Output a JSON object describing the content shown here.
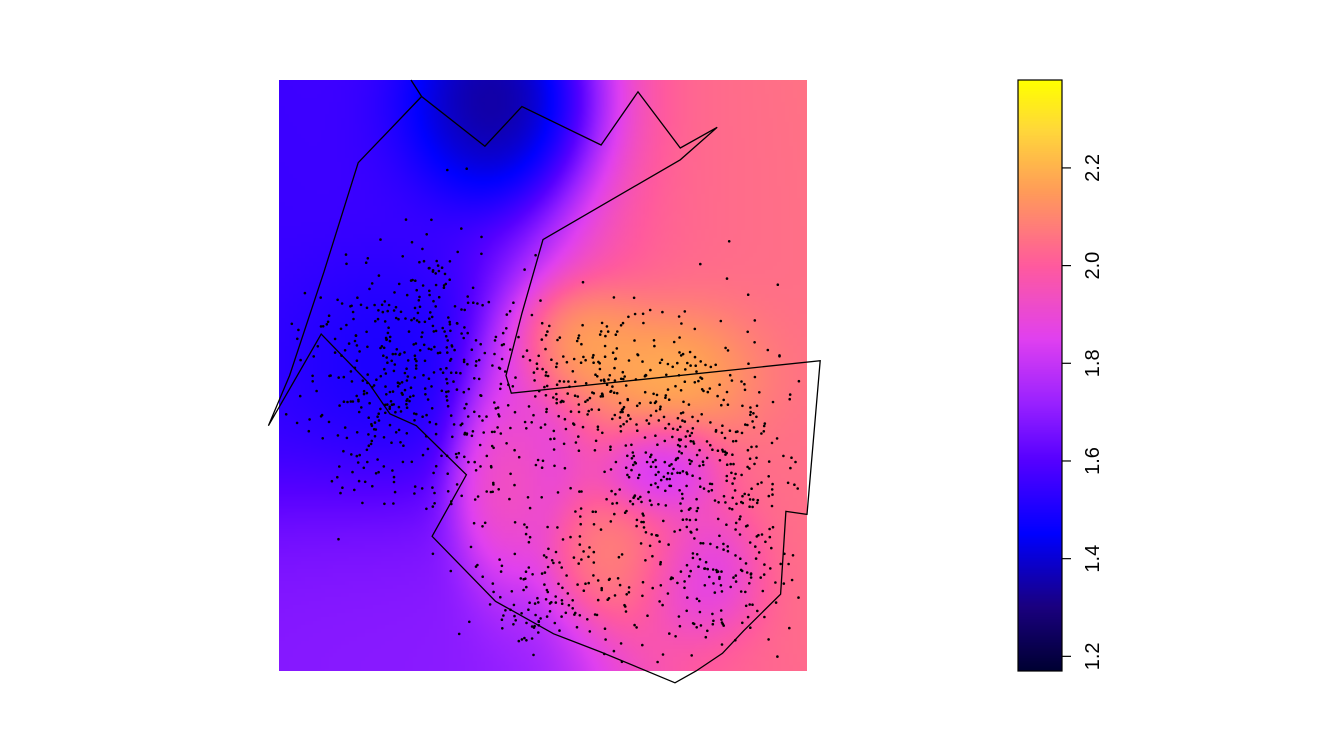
{
  "chart_data": {
    "type": "heatmap",
    "title": "",
    "xlabel": "",
    "ylabel": "",
    "axes_drawn": false,
    "colormap": {
      "name": "plasma-like",
      "stops": [
        {
          "value": 1.17,
          "color": "#000033"
        },
        {
          "value": 1.3,
          "color": "#1a0080"
        },
        {
          "value": 1.45,
          "color": "#0000ff"
        },
        {
          "value": 1.6,
          "color": "#5500ff"
        },
        {
          "value": 1.72,
          "color": "#9a22ff"
        },
        {
          "value": 1.85,
          "color": "#e040f0"
        },
        {
          "value": 2.0,
          "color": "#ff5a9e"
        },
        {
          "value": 2.15,
          "color": "#ff9a5a"
        },
        {
          "value": 2.28,
          "color": "#ffd83a"
        },
        {
          "value": 2.38,
          "color": "#ffff00"
        }
      ]
    },
    "colorbar": {
      "range": [
        1.17,
        2.38
      ],
      "ticks": [
        1.2,
        1.4,
        1.6,
        1.8,
        2.0,
        2.2
      ],
      "tick_labels": [
        "1.2",
        "1.4",
        "1.6",
        "1.8",
        "2.0",
        "2.2"
      ],
      "orientation": "vertical",
      "label_rotation": "rotated"
    },
    "surface_features": [
      {
        "kind": "high",
        "value": 2.35,
        "cx": 0.76,
        "cy": 0.5,
        "sx": 0.09,
        "sy": 0.07
      },
      {
        "kind": "high",
        "value": 2.3,
        "cx": 0.57,
        "cy": 0.44,
        "sx": 0.08,
        "sy": 0.06
      },
      {
        "kind": "high",
        "value": 2.05,
        "cx": 0.9,
        "cy": 0.65,
        "sx": 0.17,
        "sy": 0.22
      },
      {
        "kind": "high",
        "value": 2.05,
        "cx": 0.8,
        "cy": 0.22,
        "sx": 0.2,
        "sy": 0.25
      },
      {
        "kind": "high",
        "value": 2.15,
        "cx": 0.68,
        "cy": 0.8,
        "sx": 0.08,
        "sy": 0.06
      },
      {
        "kind": "high",
        "value": 2.05,
        "cx": 0.97,
        "cy": 0.8,
        "sx": 0.05,
        "sy": 0.06
      },
      {
        "kind": "high",
        "value": 2.0,
        "cx": 0.42,
        "cy": 0.62,
        "sx": 0.05,
        "sy": 0.12
      },
      {
        "kind": "low",
        "value": 1.15,
        "cx": 0.43,
        "cy": 0.06,
        "sx": 0.11,
        "sy": 0.1
      },
      {
        "kind": "low",
        "value": 1.45,
        "cx": 0.22,
        "cy": 0.45,
        "sx": 0.12,
        "sy": 0.1
      },
      {
        "kind": "low",
        "value": 1.55,
        "cx": 0.12,
        "cy": 0.25,
        "sx": 0.25,
        "sy": 0.25
      },
      {
        "kind": "low",
        "value": 1.62,
        "cx": 0.74,
        "cy": 0.66,
        "sx": 0.06,
        "sy": 0.05
      },
      {
        "kind": "low",
        "value": 1.7,
        "cx": 0.8,
        "cy": 0.82,
        "sx": 0.07,
        "sy": 0.06
      },
      {
        "kind": "low",
        "value": 1.7,
        "cx": 0.02,
        "cy": 0.98,
        "sx": 0.25,
        "sy": 0.15
      }
    ],
    "background_value": 1.8,
    "boundary_polygon": [
      [
        0.25,
        0.0
      ],
      [
        0.27,
        0.028
      ],
      [
        0.39,
        0.112
      ],
      [
        0.46,
        0.045
      ],
      [
        0.61,
        0.11
      ],
      [
        0.68,
        0.02
      ],
      [
        0.76,
        0.115
      ],
      [
        0.83,
        0.08
      ],
      [
        0.76,
        0.135
      ],
      [
        0.5,
        0.27
      ],
      [
        0.46,
        0.395
      ],
      [
        0.43,
        0.5
      ],
      [
        0.44,
        0.53
      ],
      [
        1.025,
        0.475
      ],
      [
        1.0,
        0.735
      ],
      [
        0.96,
        0.73
      ],
      [
        0.95,
        0.87
      ],
      [
        0.88,
        0.932
      ],
      [
        0.84,
        0.97
      ],
      [
        0.79,
        1.0
      ],
      [
        0.75,
        1.02
      ],
      [
        0.61,
        0.968
      ],
      [
        0.52,
        0.937
      ],
      [
        0.41,
        0.882
      ],
      [
        0.29,
        0.772
      ],
      [
        0.355,
        0.668
      ],
      [
        0.26,
        0.585
      ],
      [
        0.21,
        0.565
      ],
      [
        0.17,
        0.513
      ],
      [
        0.08,
        0.43
      ],
      [
        -0.02,
        0.585
      ],
      [
        0.02,
        0.5
      ],
      [
        0.085,
        0.325
      ],
      [
        0.15,
        0.14
      ],
      [
        0.27,
        0.028
      ]
    ],
    "point_clusters": [
      {
        "cx": 0.22,
        "cy": 0.48,
        "sx": 0.09,
        "sy": 0.08,
        "n": 250
      },
      {
        "cx": 0.63,
        "cy": 0.5,
        "sx": 0.14,
        "sy": 0.06,
        "n": 260
      },
      {
        "cx": 0.73,
        "cy": 0.65,
        "sx": 0.1,
        "sy": 0.07,
        "n": 200
      },
      {
        "cx": 0.8,
        "cy": 0.85,
        "sx": 0.09,
        "sy": 0.07,
        "n": 140
      },
      {
        "cx": 0.55,
        "cy": 0.82,
        "sx": 0.1,
        "sy": 0.08,
        "n": 100
      },
      {
        "cx": 0.88,
        "cy": 0.65,
        "sx": 0.06,
        "sy": 0.12,
        "n": 120
      },
      {
        "cx": 0.4,
        "cy": 0.6,
        "sx": 0.06,
        "sy": 0.1,
        "n": 80
      },
      {
        "cx": 0.2,
        "cy": 0.62,
        "sx": 0.08,
        "sy": 0.07,
        "n": 80
      },
      {
        "cx": 0.3,
        "cy": 0.35,
        "sx": 0.05,
        "sy": 0.08,
        "n": 60
      },
      {
        "cx": 0.5,
        "cy": 0.88,
        "sx": 0.07,
        "sy": 0.05,
        "n": 60
      }
    ]
  }
}
